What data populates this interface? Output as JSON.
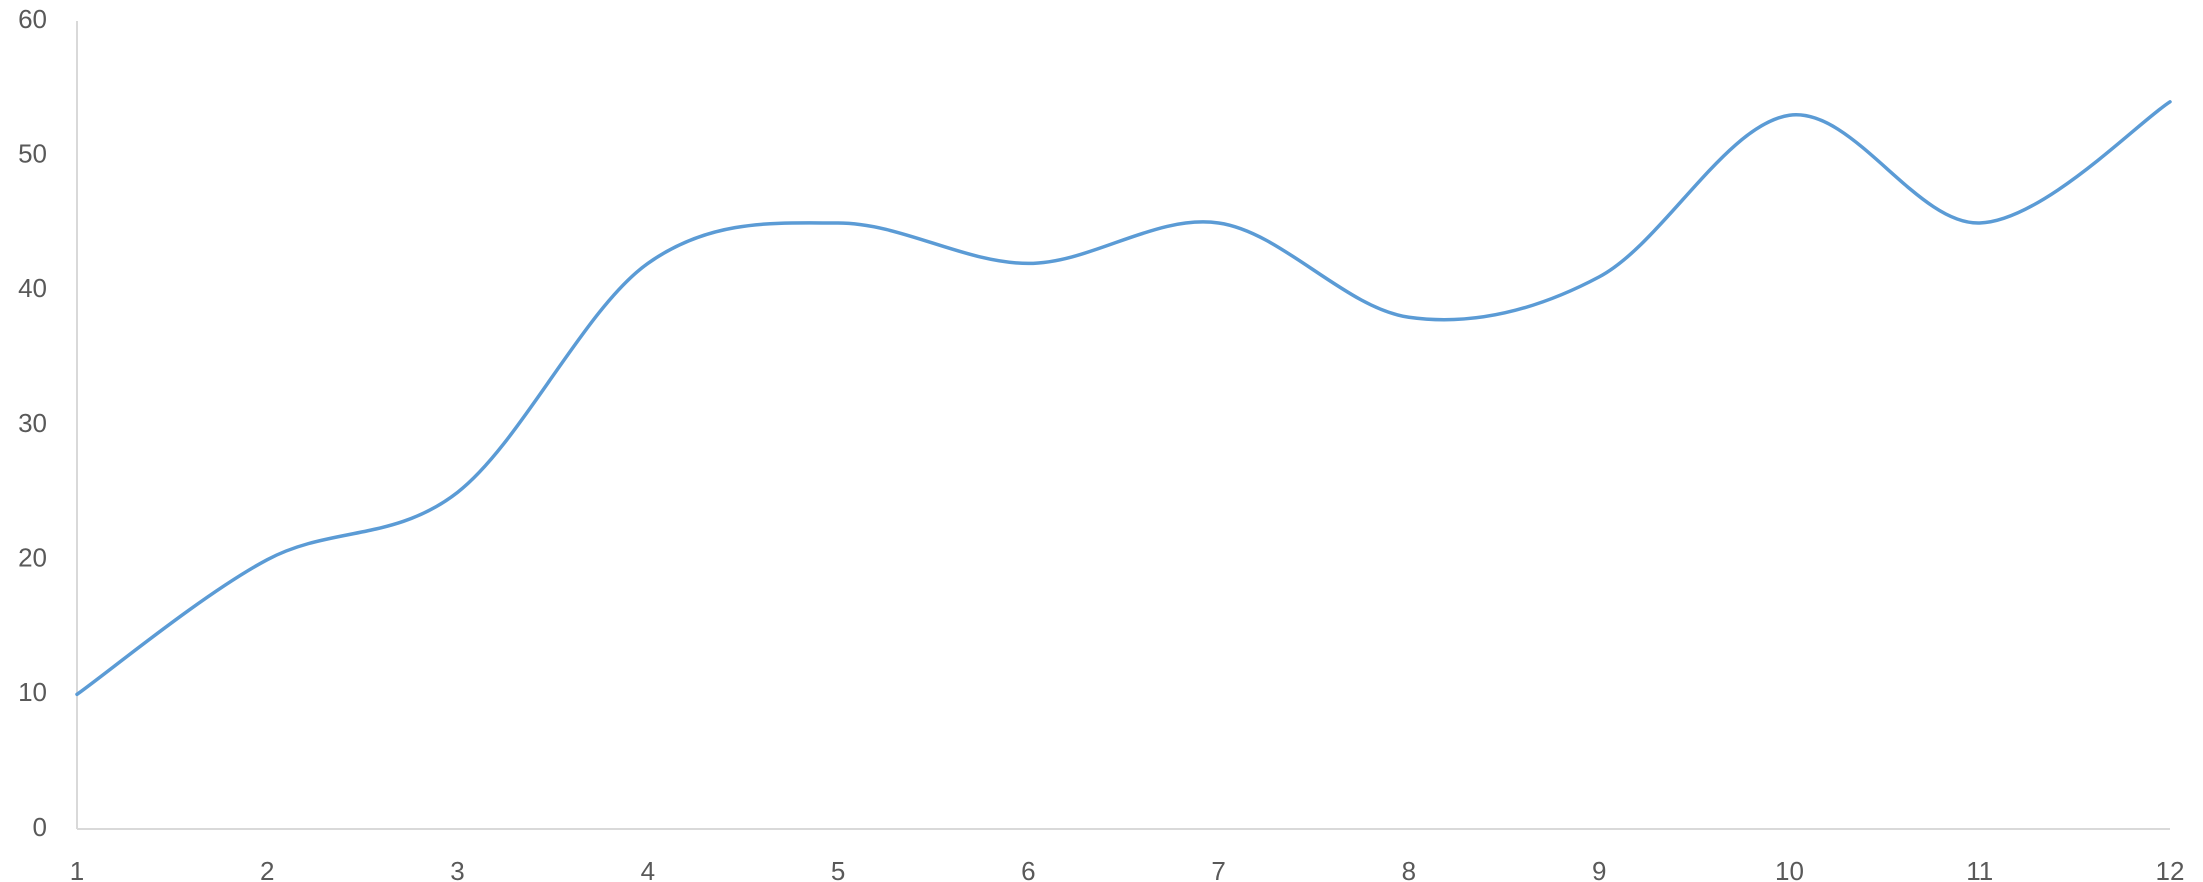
{
  "chart_data": {
    "type": "line",
    "smooth": true,
    "x": [
      1,
      2,
      3,
      4,
      5,
      6,
      7,
      8,
      9,
      10,
      11,
      12
    ],
    "series": [
      {
        "values": [
          10,
          20,
          25,
          42,
          45,
          42,
          45,
          38,
          41,
          53,
          45,
          54
        ],
        "color": "#5b9bd5"
      }
    ],
    "xticks": [
      "1",
      "2",
      "3",
      "4",
      "5",
      "6",
      "7",
      "8",
      "9",
      "10",
      "11",
      "12"
    ],
    "yticks": [
      "0",
      "10",
      "20",
      "30",
      "40",
      "50",
      "60"
    ],
    "ylim": [
      0,
      60
    ],
    "grid": false,
    "legend": "none",
    "title": "",
    "xlabel": "",
    "ylabel": ""
  }
}
